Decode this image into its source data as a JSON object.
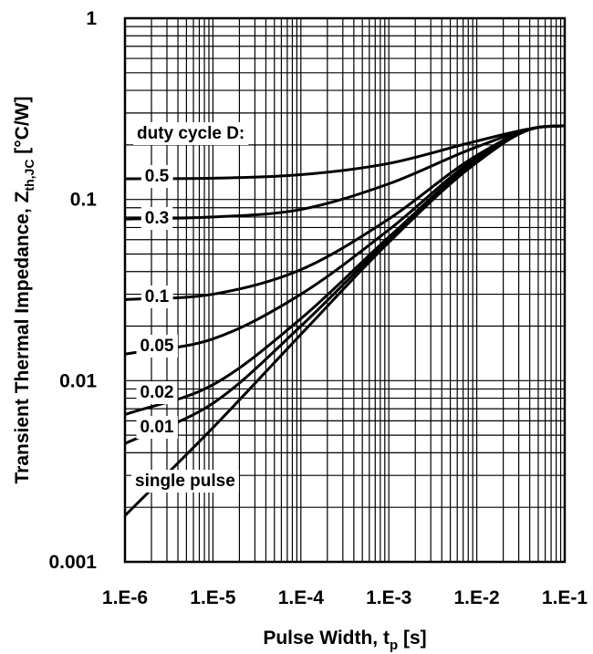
{
  "chart_data": {
    "type": "line",
    "xscale": "log",
    "yscale": "log",
    "xlim": [
      1e-06,
      0.1
    ],
    "ylim": [
      0.001,
      1
    ],
    "grid": true,
    "xlabel": "Pulse Width, t",
    "xlabel_sub": "p",
    "xlabel_unit": " [s]",
    "ylabel": "Transient Thermal Impedance, Z",
    "ylabel_sub": "th,JC",
    "ylabel_unit": " [°C/W]",
    "xticks": [
      {
        "value": 1e-06,
        "label": "1.E-6"
      },
      {
        "value": 1e-05,
        "label": "1.E-5"
      },
      {
        "value": 0.0001,
        "label": "1.E-4"
      },
      {
        "value": 0.001,
        "label": "1.E-3"
      },
      {
        "value": 0.01,
        "label": "1.E-2"
      },
      {
        "value": 0.1,
        "label": "1.E-1"
      }
    ],
    "yticks": [
      {
        "value": 1,
        "label": "1"
      },
      {
        "value": 0.1,
        "label": "0.1"
      },
      {
        "value": 0.01,
        "label": "0.01"
      },
      {
        "value": 0.001,
        "label": "0.001"
      }
    ],
    "legend_title": "duty cycle D:",
    "series": [
      {
        "name": "0.5",
        "x": [
          1e-06,
          1e-05,
          0.0001,
          0.001,
          0.01,
          0.05,
          0.1
        ],
        "y": [
          0.13,
          0.131,
          0.137,
          0.158,
          0.21,
          0.25,
          0.255
        ]
      },
      {
        "name": "0.3",
        "x": [
          1e-06,
          1e-05,
          0.0001,
          0.001,
          0.01,
          0.05,
          0.1
        ],
        "y": [
          0.078,
          0.08,
          0.088,
          0.122,
          0.195,
          0.25,
          0.255
        ]
      },
      {
        "name": "0.1",
        "x": [
          1e-06,
          1e-05,
          0.0001,
          0.001,
          0.01,
          0.05,
          0.1
        ],
        "y": [
          0.028,
          0.03,
          0.041,
          0.078,
          0.175,
          0.25,
          0.255
        ]
      },
      {
        "name": "0.05",
        "x": [
          1e-06,
          1e-05,
          0.0001,
          0.001,
          0.01,
          0.05,
          0.1
        ],
        "y": [
          0.014,
          0.017,
          0.03,
          0.068,
          0.17,
          0.25,
          0.255
        ]
      },
      {
        "name": "0.02",
        "x": [
          1e-06,
          1e-05,
          0.0001,
          0.001,
          0.01,
          0.05,
          0.1
        ],
        "y": [
          0.0065,
          0.0095,
          0.022,
          0.062,
          0.165,
          0.25,
          0.255
        ]
      },
      {
        "name": "0.01",
        "x": [
          1e-06,
          1e-05,
          0.0001,
          0.001,
          0.01,
          0.05,
          0.1
        ],
        "y": [
          0.0045,
          0.0075,
          0.02,
          0.06,
          0.163,
          0.25,
          0.255
        ]
      },
      {
        "name": "single pulse",
        "x": [
          1e-06,
          1e-05,
          0.0001,
          0.001,
          0.01,
          0.05,
          0.1
        ],
        "y": [
          0.0018,
          0.0055,
          0.018,
          0.058,
          0.16,
          0.25,
          0.255
        ]
      }
    ]
  }
}
